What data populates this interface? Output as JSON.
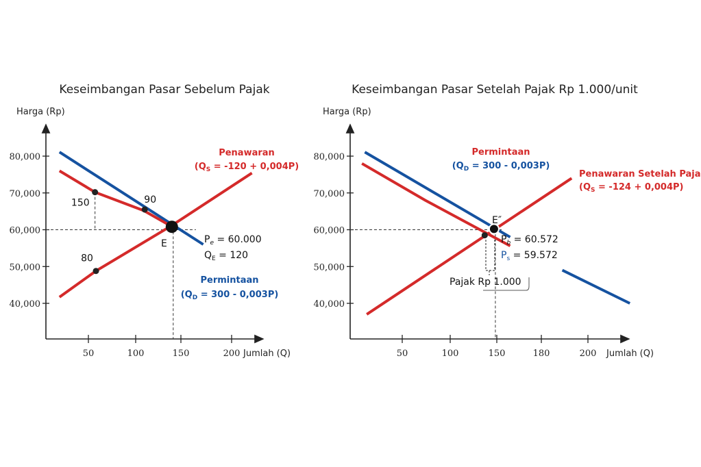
{
  "chart_data": [
    {
      "type": "line",
      "title": "Keseimbangan Pasar Sebelum Pajak",
      "ylabel": "Harga (Rp)",
      "xlabel": "Jumlah (Q)",
      "x_ticks": [
        "50",
        "100",
        "150",
        "200"
      ],
      "x_tick_values": [
        50,
        100,
        150,
        200
      ],
      "y_ticks": [
        "80,000",
        "70,000",
        "60,000",
        "50,000",
        "40,000"
      ],
      "y_tick_values": [
        80000,
        70000,
        60000,
        50000,
        40000
      ],
      "series": [
        {
          "name": "Permintaan",
          "formula_prefix": "(Q",
          "formula_sub": "D",
          "formula_rest": " = 300 - 0,003P)",
          "color": "#1552a0",
          "x": [
            16,
            172
          ],
          "y": [
            81100,
            56000
          ]
        },
        {
          "name": "Penawaran (upper curve)",
          "color": "#d42a2a",
          "x": [
            16,
            57,
            109,
            139
          ],
          "y": [
            76000,
            70200,
            65200,
            61000
          ]
        },
        {
          "name": "Penawaran",
          "formula_prefix": "(Q",
          "formula_sub": "S",
          "formula_rest": " = -120 + 0,004P)",
          "color": "#d42a2a",
          "x": [
            16,
            58,
            139,
            220
          ],
          "y": [
            41700,
            48800,
            61000,
            75400
          ]
        }
      ],
      "points": [
        {
          "label": "150",
          "x": 57,
          "y": 70200
        },
        {
          "label": "90",
          "x": 110,
          "y": 65500
        },
        {
          "label": "80",
          "x": 58,
          "y": 48800
        }
      ],
      "equilibrium": {
        "label": "E",
        "x": 140,
        "y": 60800,
        "pe_prefix": "P",
        "pe_sub": "e",
        "pe_rest": " = 60.000",
        "qe_prefix": "Q",
        "qe_sub": "E",
        "qe_rest": " = 120"
      }
    },
    {
      "type": "line",
      "title": "Keseimbangan Pasar Setelah Pajak Rp 1.000/unit",
      "ylabel": "Harga (Rp)",
      "xlabel": "Jumlah (Q)",
      "x_ticks": [
        "50",
        "100",
        "150",
        "180",
        "200"
      ],
      "x_tick_values": [
        50,
        100,
        150,
        180,
        200
      ],
      "y_ticks": [
        "80,000",
        "70,000",
        "60,000",
        "50,000",
        "40,000"
      ],
      "y_tick_values": [
        80000,
        70000,
        60000,
        50000,
        40000
      ],
      "series": [
        {
          "name": "Permintaan",
          "formula_prefix": "(Q",
          "formula_sub": "D",
          "formula_rest": " = 300 - 0,003P)",
          "color": "#1552a0",
          "x": [
            11,
            159
          ],
          "y": [
            81100,
            58000
          ]
        },
        {
          "name": "Permintaan (segment 2)",
          "color": "#1552a0",
          "x": [
            189,
            218
          ],
          "y": [
            49000,
            40000
          ]
        },
        {
          "name": "Permintaan (red curve)",
          "color": "#d42a2a",
          "x": [
            8,
            74,
            159
          ],
          "y": [
            78000,
            68000,
            55600
          ]
        },
        {
          "name": "Penawaran Setelah Pajak",
          "formula_prefix": "(Q",
          "formula_sub": "S",
          "formula_rest": " = -124 + 0,004P)",
          "color": "#d42a2a",
          "x": [
            13,
            193
          ],
          "y": [
            37000,
            74000
          ]
        }
      ],
      "points": [
        {
          "label": "",
          "x": 137,
          "y": 58500
        }
      ],
      "equilibrium": {
        "label": "E″",
        "x": 147,
        "y": 60200,
        "pb_prefix": "P",
        "pb_sub": "b",
        "pb_rest": " = 60.572",
        "ps_prefix": "P",
        "ps_sub": "s",
        "ps_rest": " = 59.572"
      },
      "tax_label": "Pajak Rp 1.000"
    }
  ]
}
